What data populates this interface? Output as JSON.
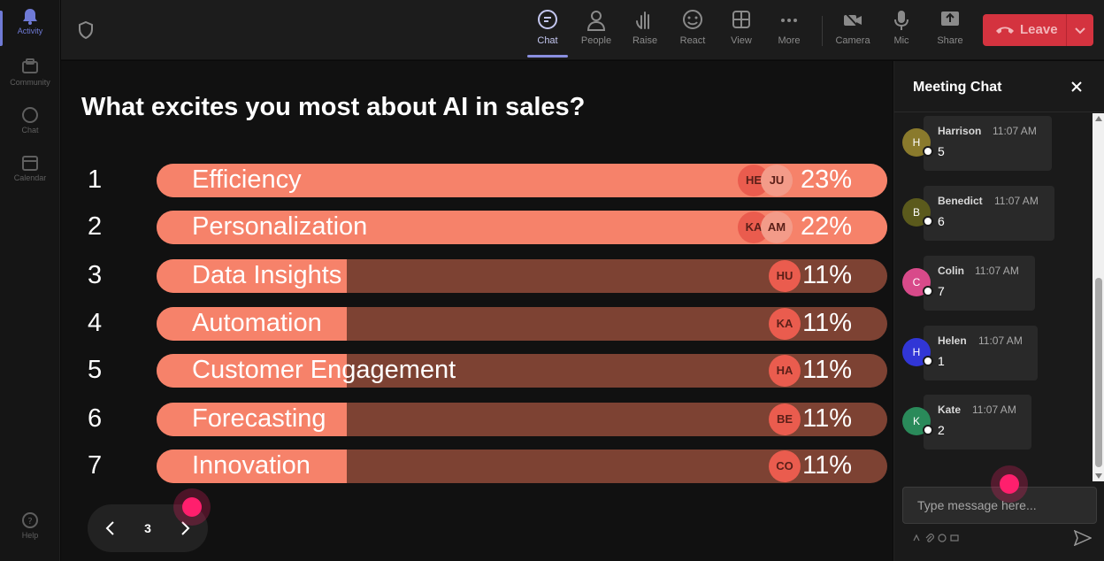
{
  "rail": {
    "items": [
      {
        "label": "Activity",
        "icon": "bell-icon"
      },
      {
        "label": "Community",
        "icon": "community-icon"
      },
      {
        "label": "Chat",
        "icon": "chat-icon"
      },
      {
        "label": "Calendar",
        "icon": "calendar-icon"
      },
      {
        "label": "Help",
        "icon": "help-icon"
      }
    ]
  },
  "toolbar": {
    "buttons": [
      {
        "label": "Chat",
        "icon": "chat-icon"
      },
      {
        "label": "People",
        "icon": "people-icon"
      },
      {
        "label": "Raise",
        "icon": "raise-hand-icon"
      },
      {
        "label": "React",
        "icon": "react-icon"
      },
      {
        "label": "View",
        "icon": "view-icon"
      },
      {
        "label": "More",
        "icon": "more-icon"
      },
      {
        "label": "Camera",
        "icon": "camera-off-icon"
      },
      {
        "label": "Mic",
        "icon": "mic-icon"
      },
      {
        "label": "Share",
        "icon": "share-icon"
      }
    ],
    "leave_label": "Leave",
    "leave_color": "#d4333f"
  },
  "poll": {
    "question": "What excites you most about AI in sales?",
    "bar_color": "#f6826a",
    "track_color": "#7d4233",
    "options": [
      {
        "rank": "1",
        "label": "Efficiency",
        "percent": 23,
        "percent_label": "23%",
        "voters": [
          "HE",
          "JU"
        ]
      },
      {
        "rank": "2",
        "label": "Personalization",
        "percent": 22,
        "percent_label": "22%",
        "voters": [
          "KA",
          "AM"
        ]
      },
      {
        "rank": "3",
        "label": "Data Insights",
        "percent": 11,
        "percent_label": "11%",
        "voters": [
          "HU"
        ]
      },
      {
        "rank": "4",
        "label": "Automation",
        "percent": 11,
        "percent_label": "11%",
        "voters": [
          "KA"
        ]
      },
      {
        "rank": "5",
        "label": "Customer Engagement",
        "percent": 11,
        "percent_label": "11%",
        "voters": [
          "HA"
        ]
      },
      {
        "rank": "6",
        "label": "Forecasting",
        "percent": 11,
        "percent_label": "11%",
        "voters": [
          "BE"
        ]
      },
      {
        "rank": "7",
        "label": "Innovation",
        "percent": 11,
        "percent_label": "11%",
        "voters": [
          "CO"
        ]
      }
    ]
  },
  "pager": {
    "page": "3"
  },
  "chat": {
    "title": "Meeting Chat",
    "messages": [
      {
        "initial": "H",
        "name": "Harrison",
        "time": "11:07 AM",
        "text": "5",
        "color": "#8a7a2c"
      },
      {
        "initial": "B",
        "name": "Benedict",
        "time": "11:07 AM",
        "text": "6",
        "color": "#5b5a1c"
      },
      {
        "initial": "C",
        "name": "Colin",
        "time": "11:07 AM",
        "text": "7",
        "color": "#d84a8a"
      },
      {
        "initial": "H",
        "name": "Helen",
        "time": "11:07 AM",
        "text": "1",
        "color": "#3136d6"
      },
      {
        "initial": "K",
        "name": "Kate",
        "time": "11:07 AM",
        "text": "2",
        "color": "#2a8a5a"
      }
    ],
    "compose_placeholder": "Type message here..."
  }
}
